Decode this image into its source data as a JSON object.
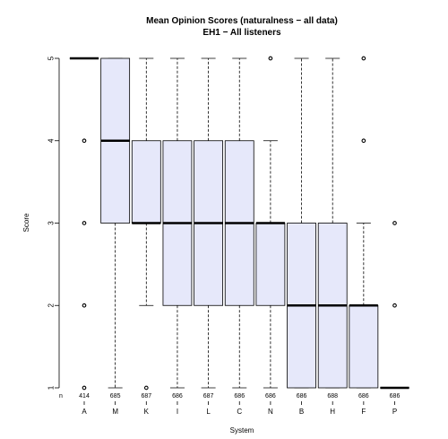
{
  "chart_data": {
    "type": "boxplot",
    "title": "Mean Opinion Scores (naturalness − all data)",
    "subtitle": "EH1 − All listeners",
    "xlabel": "System",
    "ylabel": "Score",
    "ylim": [
      1,
      5
    ],
    "yticks": [
      1,
      2,
      3,
      4,
      5
    ],
    "n_label": "n",
    "box_fill": "#e6e8fa",
    "grid": false,
    "categories": [
      "A",
      "M",
      "K",
      "I",
      "L",
      "C",
      "N",
      "B",
      "H",
      "F",
      "P"
    ],
    "n": [
      "414",
      "685",
      "687",
      "686",
      "687",
      "686",
      "686",
      "686",
      "688",
      "686",
      "686"
    ],
    "boxes": [
      {
        "system": "A",
        "whisker_low": 5,
        "q1": 5,
        "median": 5,
        "q3": 5,
        "whisker_high": 5,
        "outliers": [
          4,
          3,
          2,
          1
        ]
      },
      {
        "system": "M",
        "whisker_low": 1,
        "q1": 3,
        "median": 4,
        "q3": 5,
        "whisker_high": 5,
        "outliers": []
      },
      {
        "system": "K",
        "whisker_low": 2,
        "q1": 3,
        "median": 3,
        "q3": 4,
        "whisker_high": 5,
        "outliers": [
          1
        ]
      },
      {
        "system": "I",
        "whisker_low": 1,
        "q1": 2,
        "median": 3,
        "q3": 4,
        "whisker_high": 5,
        "outliers": []
      },
      {
        "system": "L",
        "whisker_low": 1,
        "q1": 2,
        "median": 3,
        "q3": 4,
        "whisker_high": 5,
        "outliers": []
      },
      {
        "system": "C",
        "whisker_low": 1,
        "q1": 2,
        "median": 3,
        "q3": 4,
        "whisker_high": 5,
        "outliers": []
      },
      {
        "system": "N",
        "whisker_low": 1,
        "q1": 2,
        "median": 3,
        "q3": 3,
        "whisker_high": 4,
        "outliers": [
          5
        ]
      },
      {
        "system": "B",
        "whisker_low": 1,
        "q1": 1,
        "median": 2,
        "q3": 3,
        "whisker_high": 5,
        "outliers": []
      },
      {
        "system": "H",
        "whisker_low": 1,
        "q1": 1,
        "median": 2,
        "q3": 3,
        "whisker_high": 5,
        "outliers": []
      },
      {
        "system": "F",
        "whisker_low": 1,
        "q1": 1,
        "median": 2,
        "q3": 2,
        "whisker_high": 3,
        "outliers": [
          5,
          4
        ]
      },
      {
        "system": "P",
        "whisker_low": 1,
        "q1": 1,
        "median": 1,
        "q3": 1,
        "whisker_high": 1,
        "outliers": [
          3,
          2
        ]
      }
    ]
  }
}
